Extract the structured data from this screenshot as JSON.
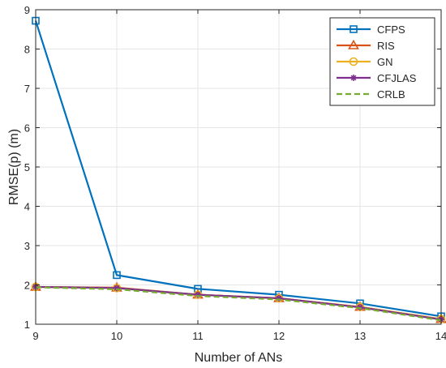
{
  "chart_data": {
    "type": "line",
    "xlabel": "Number of ANs",
    "ylabel": "RMSE(p) (m)",
    "x": [
      9,
      10,
      11,
      12,
      13,
      14
    ],
    "xlim": [
      9,
      14
    ],
    "ylim": [
      1,
      9
    ],
    "xticks": [
      "9",
      "10",
      "11",
      "12",
      "13",
      "14"
    ],
    "yticks": [
      "1",
      "2",
      "3",
      "4",
      "5",
      "6",
      "7",
      "8",
      "9"
    ],
    "grid": true,
    "legend_position": "top-right",
    "series": [
      {
        "name": "CFPS",
        "values": [
          8.72,
          2.25,
          1.9,
          1.75,
          1.53,
          1.2
        ],
        "color": "#0072BD",
        "marker": "square",
        "dash": "solid"
      },
      {
        "name": "RIS",
        "values": [
          1.95,
          1.93,
          1.75,
          1.66,
          1.44,
          1.13
        ],
        "color": "#D95319",
        "marker": "triangle",
        "dash": "solid"
      },
      {
        "name": "GN",
        "values": [
          1.95,
          1.92,
          1.75,
          1.66,
          1.44,
          1.13
        ],
        "color": "#EDB120",
        "marker": "circle",
        "dash": "solid"
      },
      {
        "name": "CFJLAS",
        "values": [
          1.95,
          1.92,
          1.75,
          1.66,
          1.43,
          1.12
        ],
        "color": "#7E2F8E",
        "marker": "star",
        "dash": "solid"
      },
      {
        "name": "CRLB",
        "values": [
          1.94,
          1.89,
          1.72,
          1.63,
          1.41,
          1.1
        ],
        "color": "#77AC30",
        "marker": "none",
        "dash": "dashed"
      }
    ]
  }
}
